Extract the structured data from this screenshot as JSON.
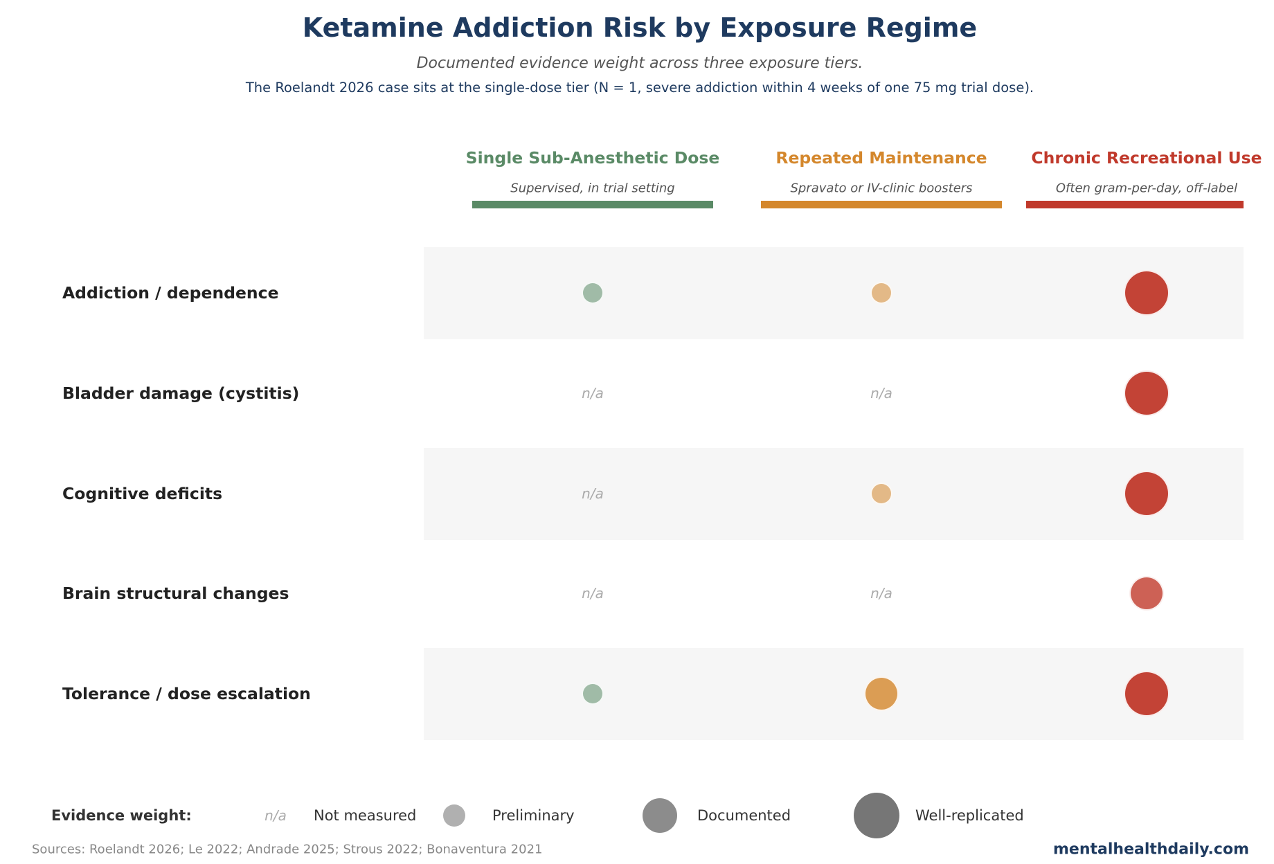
{
  "chart_data": {
    "type": "bubble-matrix",
    "title": "Ketamine Addiction Risk by Exposure Regime",
    "subtitle": "Documented evidence weight across three exposure tiers.",
    "note": "The Roelandt 2026 case sits at the single-dose tier (N = 1, severe addiction within 4 weeks of one 75 mg trial dose).",
    "columns": [
      {
        "name": "Single Sub-Anesthetic Dose",
        "description": "Supervised, in trial setting",
        "color": "#5a8a66"
      },
      {
        "name": "Repeated Maintenance",
        "description": "Spravato or IV-clinic boosters",
        "color": "#d4872c"
      },
      {
        "name": "Chronic Recreational Use",
        "description": "Often gram-per-day, off-label",
        "color": "#c0392b"
      }
    ],
    "rows": [
      {
        "label": "Addiction / dependence",
        "values": [
          "Preliminary",
          "Preliminary",
          "Well-replicated"
        ]
      },
      {
        "label": "Bladder damage (cystitis)",
        "values": [
          "n/a",
          "n/a",
          "Well-replicated"
        ]
      },
      {
        "label": "Cognitive deficits",
        "values": [
          "n/a",
          "Preliminary",
          "Well-replicated"
        ]
      },
      {
        "label": "Brain structural changes",
        "values": [
          "n/a",
          "n/a",
          "Documented"
        ]
      },
      {
        "label": "Tolerance / dose escalation",
        "values": [
          "Preliminary",
          "Documented",
          "Well-replicated"
        ]
      }
    ],
    "na_text": "n/a",
    "legend": {
      "title": "Evidence weight:",
      "placement": "bottom",
      "levels": [
        {
          "key": "n/a",
          "label": "Not measured"
        },
        {
          "key": "Preliminary",
          "label": "Preliminary"
        },
        {
          "key": "Documented",
          "label": "Documented"
        },
        {
          "key": "Well-replicated",
          "label": "Well-replicated"
        }
      ]
    }
  },
  "footer": {
    "sources": "Sources: Roelandt 2026; Le 2022; Andrade 2025; Strous 2022; Bonaventura 2021",
    "brand": "mentalhealthdaily.com"
  }
}
